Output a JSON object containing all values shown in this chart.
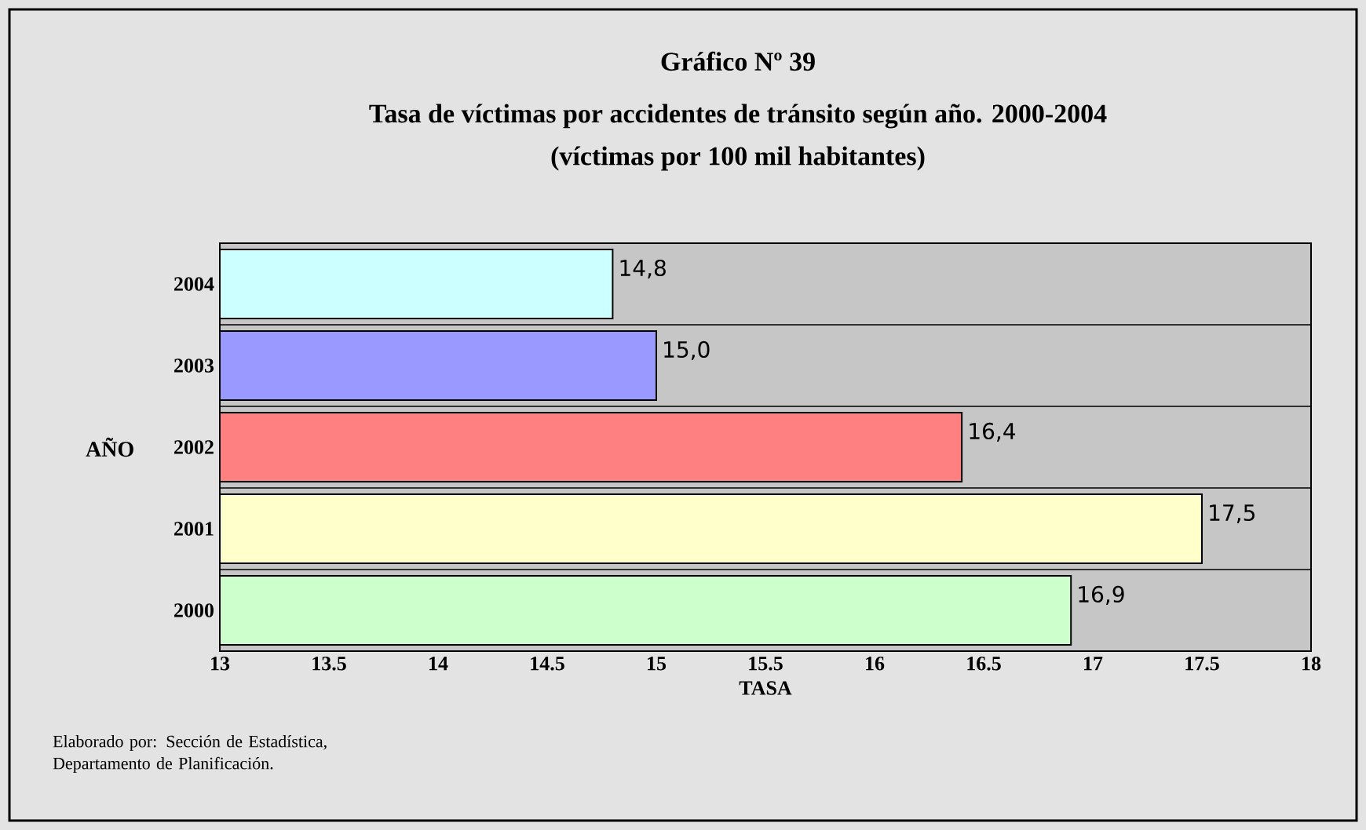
{
  "chart_data": {
    "type": "bar",
    "orientation": "horizontal",
    "title": "Gráfico Nº 39",
    "subtitle": "Tasa de víctimas por accidentes de tránsito según año. 2000-2004",
    "xlabel": "TASA",
    "ylabel": "AÑO",
    "annotations": [
      "(víctimas por 100 mil habitantes)",
      "Elaborado por: Sección de Estadística, Departamento de Planificación."
    ],
    "categories": [
      "2004",
      "2003",
      "2002",
      "2001",
      "2000"
    ],
    "values": [
      14.8,
      15.0,
      16.4,
      17.5,
      16.9
    ],
    "value_labels": [
      "14,8",
      "15,0",
      "16,4",
      "17,5",
      "16,9"
    ],
    "colors": [
      "#ccffff",
      "#9999ff",
      "#ff8080",
      "#ffffcc",
      "#ccffcc"
    ],
    "xlim": [
      13,
      18
    ],
    "xticks": [
      13,
      13.5,
      14,
      14.5,
      15,
      15.5,
      16,
      16.5,
      17,
      17.5,
      18
    ],
    "grid": "y"
  }
}
